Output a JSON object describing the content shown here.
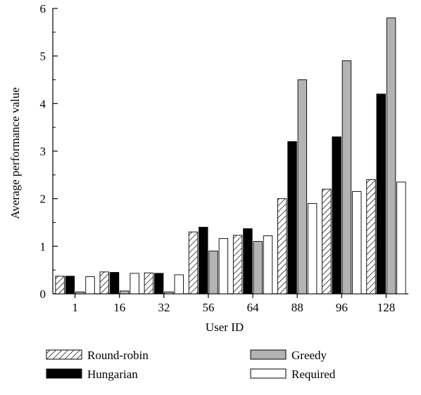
{
  "chart_data": {
    "type": "bar",
    "title": "",
    "xlabel": "User ID",
    "ylabel": "Average performance value",
    "categories": [
      "1",
      "16",
      "32",
      "56",
      "64",
      "88",
      "96",
      "128"
    ],
    "ylim": [
      0,
      6
    ],
    "yticks": [
      "0",
      "1",
      "2",
      "3",
      "4",
      "5",
      "6"
    ],
    "grid": false,
    "legend_position": "bottom",
    "series": [
      {
        "name": "Round-robin",
        "fill": "hatch",
        "values": [
          0.37,
          0.46,
          0.44,
          1.3,
          1.23,
          2.0,
          2.2,
          2.4
        ]
      },
      {
        "name": "Hungarian",
        "fill": "#000000",
        "values": [
          0.37,
          0.45,
          0.43,
          1.4,
          1.37,
          3.2,
          3.3,
          4.2
        ]
      },
      {
        "name": "Greedy",
        "fill": "#b3b3b3",
        "values": [
          0.04,
          0.06,
          0.04,
          0.9,
          1.1,
          4.5,
          4.9,
          5.8
        ]
      },
      {
        "name": "Required",
        "fill": "#ffffff",
        "values": [
          0.36,
          0.43,
          0.4,
          1.16,
          1.22,
          1.9,
          2.15,
          2.35
        ]
      }
    ]
  }
}
